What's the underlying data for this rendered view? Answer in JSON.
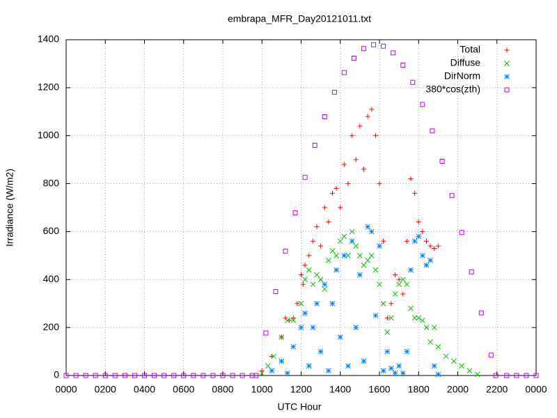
{
  "chart_data": {
    "type": "scatter",
    "title": "embrapa_MFR_Day20121011.txt",
    "xlabel": "UTC Hour",
    "ylabel": "Irradiance (W/m2)",
    "xlim": [
      0,
      24
    ],
    "ylim": [
      0,
      1400
    ],
    "xticks": [
      {
        "value": 0,
        "label": "0000"
      },
      {
        "value": 2,
        "label": "0200"
      },
      {
        "value": 4,
        "label": "0400"
      },
      {
        "value": 6,
        "label": "0600"
      },
      {
        "value": 8,
        "label": "0800"
      },
      {
        "value": 10,
        "label": "1000"
      },
      {
        "value": 12,
        "label": "1200"
      },
      {
        "value": 14,
        "label": "1400"
      },
      {
        "value": 16,
        "label": "1600"
      },
      {
        "value": 18,
        "label": "1800"
      },
      {
        "value": 20,
        "label": "2000"
      },
      {
        "value": 22,
        "label": "2200"
      },
      {
        "value": 24,
        "label": "0000"
      }
    ],
    "yticks": [
      0,
      200,
      400,
      600,
      800,
      1000,
      1200,
      1400
    ],
    "grid": true,
    "legend": "top-right",
    "series": [
      {
        "name": "Total",
        "color": "#ff0000",
        "marker": "plus",
        "x": [
          10.0,
          10.5,
          11.0,
          11.2,
          11.4,
          11.6,
          11.8,
          12.0,
          12.1,
          12.2,
          12.4,
          12.6,
          12.8,
          13.0,
          13.2,
          13.4,
          13.6,
          13.8,
          14.0,
          14.2,
          14.4,
          14.6,
          14.8,
          15.0,
          15.2,
          15.4,
          15.6,
          15.8,
          16.0,
          16.2,
          16.4,
          16.6,
          16.8,
          17.0,
          17.2,
          17.4,
          17.6,
          17.8,
          18.0,
          18.2,
          18.4,
          18.6,
          18.8,
          19.0
        ],
        "values": [
          20,
          80,
          160,
          240,
          230,
          240,
          300,
          420,
          380,
          460,
          500,
          560,
          620,
          540,
          700,
          640,
          760,
          780,
          700,
          880,
          800,
          1000,
          900,
          1040,
          860,
          1080,
          1110,
          1000,
          800,
          560,
          240,
          300,
          420,
          400,
          340,
          560,
          820,
          760,
          640,
          600,
          560,
          540,
          530,
          540
        ]
      },
      {
        "name": "Diffuse",
        "color": "#00c000",
        "marker": "cross",
        "x": [
          10.0,
          10.3,
          10.6,
          11.0,
          11.3,
          11.6,
          12.0,
          12.2,
          12.4,
          12.6,
          12.8,
          13.0,
          13.2,
          13.4,
          13.6,
          13.8,
          14.0,
          14.2,
          14.4,
          14.6,
          14.8,
          15.0,
          15.2,
          15.4,
          15.6,
          15.8,
          16.0,
          16.2,
          16.4,
          16.6,
          16.8,
          17.0,
          17.2,
          17.4,
          17.6,
          17.8,
          18.0,
          18.2,
          18.4,
          18.6,
          18.8,
          19.0,
          19.4,
          19.8,
          20.2,
          20.6,
          21.0
        ],
        "values": [
          10,
          40,
          80,
          160,
          230,
          230,
          300,
          400,
          440,
          380,
          420,
          400,
          360,
          480,
          520,
          500,
          560,
          580,
          500,
          600,
          540,
          500,
          460,
          480,
          500,
          440,
          380,
          300,
          180,
          240,
          340,
          380,
          400,
          380,
          280,
          240,
          240,
          230,
          200,
          140,
          200,
          120,
          80,
          60,
          40,
          20,
          5
        ]
      },
      {
        "name": "DirNorm",
        "color": "#0080ff",
        "marker": "star",
        "x": [
          10.5,
          11.0,
          11.3,
          11.6,
          12.0,
          12.2,
          12.4,
          12.6,
          12.8,
          13.0,
          13.2,
          13.4,
          13.6,
          13.8,
          14.0,
          14.2,
          14.4,
          14.6,
          14.8,
          15.0,
          15.2,
          15.4,
          15.6,
          15.8,
          16.0,
          16.2,
          16.4,
          16.6,
          16.8,
          17.0,
          17.2,
          17.4,
          17.6,
          17.8,
          18.0,
          18.2,
          18.4,
          18.6,
          18.8,
          19.0
        ],
        "values": [
          20,
          60,
          10,
          120,
          200,
          260,
          40,
          200,
          300,
          100,
          380,
          20,
          300,
          440,
          160,
          500,
          40,
          560,
          200,
          420,
          60,
          620,
          600,
          250,
          540,
          20,
          100,
          30,
          10,
          40,
          10,
          100,
          440,
          560,
          580,
          500,
          460,
          480,
          40,
          5
        ]
      },
      {
        "name": "380*cos(zth)",
        "color": "#c000ff",
        "marker": "square",
        "x": [
          0,
          0.5,
          1,
          1.5,
          2,
          2.5,
          3,
          3.5,
          4,
          4.5,
          5,
          5.5,
          6,
          6.5,
          7,
          7.5,
          8,
          8.5,
          9,
          9.5,
          9.7,
          10.2,
          10.7,
          11.2,
          11.7,
          12.2,
          12.7,
          13.2,
          13.7,
          14.2,
          14.7,
          15.2,
          15.7,
          16.2,
          16.7,
          17.2,
          17.7,
          18.2,
          18.7,
          19.2,
          19.7,
          20.2,
          20.7,
          21.2,
          21.7,
          21.94,
          22.5,
          23,
          23.5,
          24
        ],
        "values": [
          0,
          0,
          0,
          0,
          0,
          0,
          0,
          0,
          0,
          0,
          0,
          0,
          0,
          0,
          0,
          0,
          0,
          0,
          0,
          0,
          0,
          177,
          350,
          518,
          678,
          826,
          960,
          1079,
          1181,
          1263,
          1323,
          1363,
          1379,
          1373,
          1345,
          1294,
          1222,
          1130,
          1020,
          893,
          750,
          596,
          432,
          261,
          85,
          0,
          0,
          0,
          0,
          0
        ]
      }
    ]
  }
}
